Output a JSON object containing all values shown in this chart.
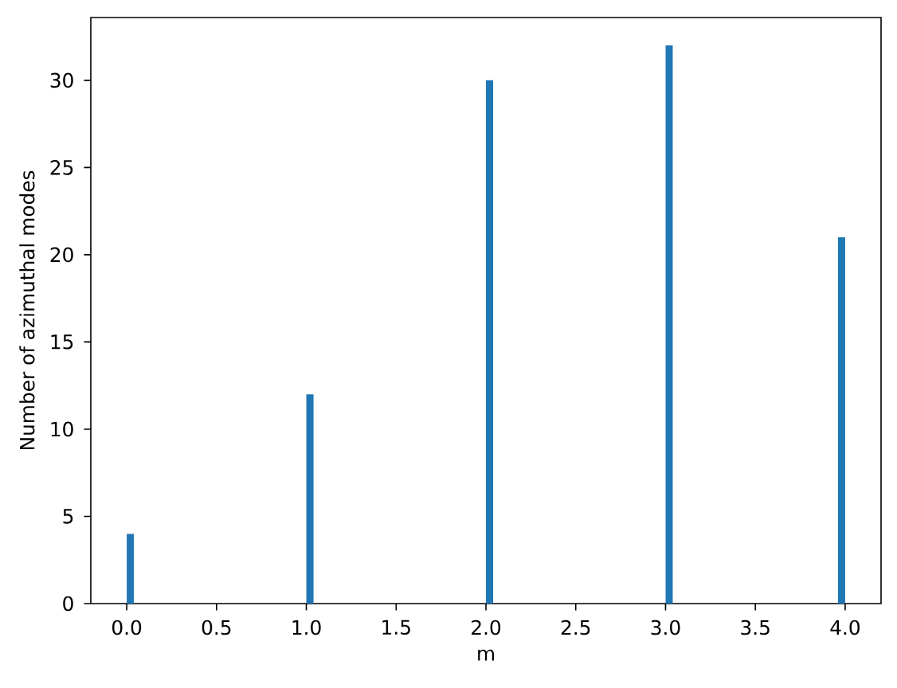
{
  "chart_data": {
    "type": "histogram",
    "xlabel": "m",
    "ylabel": "Number of azimuthal modes",
    "bins": [
      0,
      0.04,
      1,
      1.04,
      2,
      2.04,
      3,
      3.04,
      3.96,
      4
    ],
    "values": [
      4,
      0,
      12,
      0,
      30,
      0,
      32,
      0,
      21
    ],
    "color": "#1f77b4",
    "xlim": [
      -0.2,
      4.2
    ],
    "ylim": [
      0,
      33.6
    ],
    "xticks": [
      {
        "value": 0,
        "label": "0.0"
      },
      {
        "value": 0.5,
        "label": "0.5"
      },
      {
        "value": 1,
        "label": "1.0"
      },
      {
        "value": 1.5,
        "label": "1.5"
      },
      {
        "value": 2,
        "label": "2.0"
      },
      {
        "value": 2.5,
        "label": "2.5"
      },
      {
        "value": 3,
        "label": "3.0"
      },
      {
        "value": 3.5,
        "label": "3.5"
      },
      {
        "value": 4,
        "label": "4.0"
      }
    ],
    "yticks": [
      0,
      5,
      10,
      15,
      20,
      25,
      30
    ]
  }
}
